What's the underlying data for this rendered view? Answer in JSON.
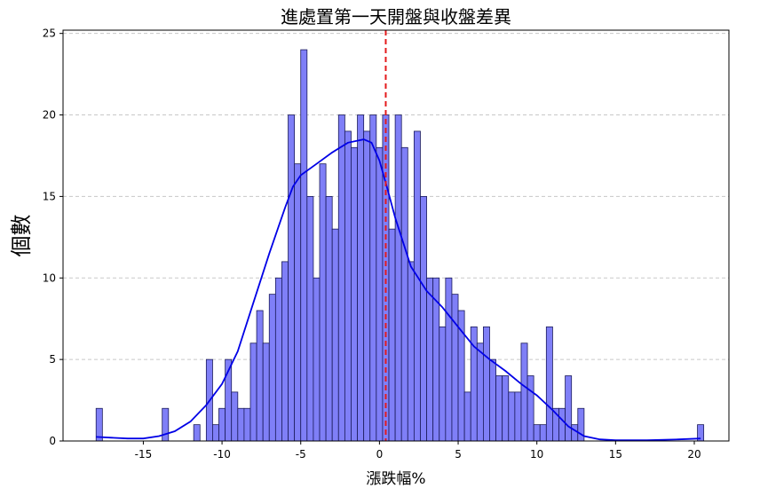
{
  "chart_data": {
    "type": "bar",
    "subtype": "histogram",
    "title": "進處置第一天開盤與收盤差異",
    "xlabel": "漲跌幅%",
    "ylabel": "個數",
    "xlim": [
      -20.1,
      22.2
    ],
    "ylim": [
      0,
      25.2
    ],
    "xticks": [
      -15,
      -10,
      -5,
      0,
      5,
      10,
      15,
      20
    ],
    "yticks": [
      0,
      5,
      10,
      15,
      20,
      25
    ],
    "grid": "y-dashed",
    "bin_start": -18.0,
    "bin_width": 0.4047,
    "counts": [
      2,
      0,
      0,
      0,
      0,
      0,
      0,
      0,
      0,
      0,
      2,
      0,
      0,
      0,
      0,
      0,
      0,
      1,
      0,
      1,
      5,
      1,
      2,
      5,
      3,
      2,
      2,
      6,
      8,
      9,
      10,
      11,
      17,
      20,
      20,
      24,
      15,
      19,
      19,
      20,
      18,
      20,
      20,
      18,
      15,
      19,
      20,
      20,
      20,
      13,
      21,
      20,
      17,
      21,
      17,
      8,
      10,
      15,
      14,
      11,
      10,
      12,
      8,
      7,
      8,
      10,
      8,
      5,
      6,
      4,
      3,
      5,
      2,
      5,
      4,
      4,
      5,
      1,
      1,
      2,
      3,
      5,
      3,
      3,
      1,
      2,
      3,
      5,
      2,
      1,
      1,
      1,
      2,
      2,
      1,
      1,
      1,
      1,
      1,
      1,
      1,
      1,
      1,
      1,
      1,
      1,
      1,
      1,
      1,
      1,
      1,
      1,
      1,
      1,
      1,
      1,
      1,
      1,
      1,
      1,
      1,
      1,
      1,
      1,
      1,
      1,
      1,
      1,
      1,
      1,
      1,
      1,
      1,
      1,
      1,
      1,
      1
    ],
    "bars": [
      {
        "x": -17.8,
        "count": 2
      },
      {
        "x": -13.6,
        "count": 2
      },
      {
        "x": -11.6,
        "count": 1
      },
      {
        "x": -10.8,
        "count": 5
      },
      {
        "x": -10.4,
        "count": 1
      },
      {
        "x": -10.0,
        "count": 2
      },
      {
        "x": -9.6,
        "count": 5
      },
      {
        "x": -9.2,
        "count": 3
      },
      {
        "x": -8.8,
        "count": 2
      },
      {
        "x": -8.4,
        "count": 2
      },
      {
        "x": -8.0,
        "count": 6
      },
      {
        "x": -7.6,
        "count": 8
      },
      {
        "x": -7.2,
        "count": 6
      },
      {
        "x": -6.8,
        "count": 9
      },
      {
        "x": -6.4,
        "count": 10
      },
      {
        "x": -6.0,
        "count": 11
      },
      {
        "x": -5.6,
        "count": 20
      },
      {
        "x": -5.2,
        "count": 17
      },
      {
        "x": -4.8,
        "count": 24
      },
      {
        "x": -4.4,
        "count": 15
      },
      {
        "x": -4.0,
        "count": 10
      },
      {
        "x": -3.6,
        "count": 17
      },
      {
        "x": -3.2,
        "count": 15
      },
      {
        "x": -2.8,
        "count": 13
      },
      {
        "x": -2.4,
        "count": 20
      },
      {
        "x": -2.0,
        "count": 19
      },
      {
        "x": -1.6,
        "count": 18
      },
      {
        "x": -1.2,
        "count": 20
      },
      {
        "x": -0.8,
        "count": 19
      },
      {
        "x": -0.4,
        "count": 20
      },
      {
        "x": 0.0,
        "count": 18
      },
      {
        "x": 0.4,
        "count": 20
      },
      {
        "x": 0.8,
        "count": 13
      },
      {
        "x": 1.2,
        "count": 20
      },
      {
        "x": 1.6,
        "count": 18
      },
      {
        "x": 2.0,
        "count": 11
      },
      {
        "x": 2.4,
        "count": 19
      },
      {
        "x": 2.8,
        "count": 15
      },
      {
        "x": 3.2,
        "count": 10
      },
      {
        "x": 3.6,
        "count": 10
      },
      {
        "x": 4.0,
        "count": 7
      },
      {
        "x": 4.4,
        "count": 10
      },
      {
        "x": 4.8,
        "count": 9
      },
      {
        "x": 5.2,
        "count": 8
      },
      {
        "x": 5.6,
        "count": 3
      },
      {
        "x": 6.0,
        "count": 7
      },
      {
        "x": 6.4,
        "count": 6
      },
      {
        "x": 6.8,
        "count": 7
      },
      {
        "x": 7.2,
        "count": 5
      },
      {
        "x": 7.6,
        "count": 4
      },
      {
        "x": 8.0,
        "count": 4
      },
      {
        "x": 8.4,
        "count": 3
      },
      {
        "x": 8.8,
        "count": 3
      },
      {
        "x": 9.2,
        "count": 6
      },
      {
        "x": 9.6,
        "count": 4
      },
      {
        "x": 10.0,
        "count": 1
      },
      {
        "x": 10.4,
        "count": 1
      },
      {
        "x": 10.8,
        "count": 7
      },
      {
        "x": 11.2,
        "count": 2
      },
      {
        "x": 11.6,
        "count": 2
      },
      {
        "x": 12.0,
        "count": 4
      },
      {
        "x": 12.4,
        "count": 1
      },
      {
        "x": 12.8,
        "count": 2
      },
      {
        "x": 20.4,
        "count": 1
      }
    ],
    "kde_curve": [
      [
        -18.0,
        0.25
      ],
      [
        -17.0,
        0.2
      ],
      [
        -16.0,
        0.15
      ],
      [
        -15.0,
        0.15
      ],
      [
        -14.0,
        0.3
      ],
      [
        -13.0,
        0.6
      ],
      [
        -12.0,
        1.2
      ],
      [
        -11.0,
        2.2
      ],
      [
        -10.0,
        3.5
      ],
      [
        -9.0,
        5.5
      ],
      [
        -8.0,
        8.5
      ],
      [
        -7.0,
        11.5
      ],
      [
        -6.0,
        14.3
      ],
      [
        -5.5,
        15.6
      ],
      [
        -5.0,
        16.3
      ],
      [
        -4.0,
        17.0
      ],
      [
        -3.0,
        17.7
      ],
      [
        -2.0,
        18.3
      ],
      [
        -1.0,
        18.5
      ],
      [
        -0.5,
        18.3
      ],
      [
        0.0,
        17.2
      ],
      [
        0.5,
        15.5
      ],
      [
        1.0,
        13.7
      ],
      [
        2.0,
        10.7
      ],
      [
        3.0,
        9.2
      ],
      [
        4.0,
        8.2
      ],
      [
        5.0,
        7.0
      ],
      [
        6.0,
        5.8
      ],
      [
        7.0,
        5.0
      ],
      [
        8.0,
        4.3
      ],
      [
        9.0,
        3.5
      ],
      [
        10.0,
        2.8
      ],
      [
        11.0,
        1.9
      ],
      [
        12.0,
        0.9
      ],
      [
        13.0,
        0.3
      ],
      [
        14.0,
        0.1
      ],
      [
        15.0,
        0.05
      ],
      [
        17.0,
        0.05
      ],
      [
        19.0,
        0.1
      ],
      [
        20.4,
        0.15
      ]
    ],
    "vline": {
      "x": 0.4,
      "color": "#e41a1c",
      "style": "dashed"
    },
    "colors": {
      "bar_fill": "#7f7ff7",
      "bar_edge": "#1a1a5a",
      "kde": "#0000e6",
      "vline": "#e41a1c",
      "grid": "#c8c8c8"
    }
  }
}
